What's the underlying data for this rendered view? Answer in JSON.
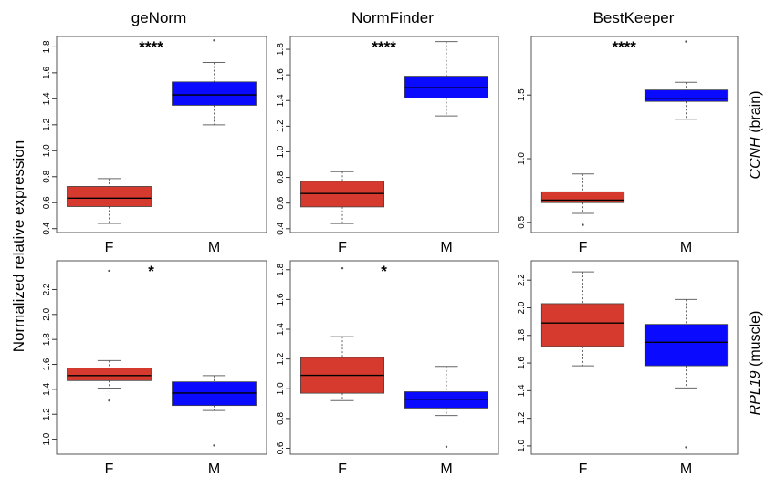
{
  "figure": {
    "ylabel": "Normalized relative expression",
    "columns": [
      "geNorm",
      "NormFinder",
      "BestKeeper"
    ],
    "rows": [
      {
        "gene": "CCNH",
        "tissue": " (brain)"
      },
      {
        "gene": "RPL19",
        "tissue": " (muscle)"
      }
    ]
  },
  "colors": {
    "F": "#d63a2f",
    "M": "#0a0aff"
  },
  "chart_data": [
    {
      "type": "box",
      "method": "geNorm",
      "gene": "CCNH",
      "tissue": "brain",
      "categories": [
        "F",
        "M"
      ],
      "ylim": [
        0.37,
        1.88
      ],
      "ticks": [
        0.4,
        0.6,
        0.8,
        1.0,
        1.2,
        1.4,
        1.6,
        1.8
      ],
      "tick_labels": [
        "0.4",
        "0.6",
        "0.8",
        "1.0",
        "1.2",
        "1.4",
        "1.6",
        "1.8"
      ],
      "boxes": [
        {
          "category": "F",
          "lower_whisker": 0.44,
          "q1": 0.57,
          "median": 0.635,
          "q3": 0.725,
          "upper_whisker": 0.785,
          "outliers": []
        },
        {
          "category": "M",
          "lower_whisker": 1.2,
          "q1": 1.35,
          "median": 1.43,
          "q3": 1.53,
          "upper_whisker": 1.68,
          "outliers": [
            1.85
          ]
        }
      ],
      "significance": "****"
    },
    {
      "type": "box",
      "method": "NormFinder",
      "gene": "CCNH",
      "tissue": "brain",
      "categories": [
        "F",
        "M"
      ],
      "ylim": [
        0.37,
        1.9
      ],
      "ticks": [
        0.4,
        0.6,
        0.8,
        1.0,
        1.2,
        1.4,
        1.6,
        1.8
      ],
      "tick_labels": [
        "0.4",
        "0.6",
        "0.8",
        "1.0",
        "1.2",
        "1.4",
        "1.6",
        "1.8"
      ],
      "boxes": [
        {
          "category": "F",
          "lower_whisker": 0.44,
          "q1": 0.57,
          "median": 0.675,
          "q3": 0.77,
          "upper_whisker": 0.845,
          "outliers": []
        },
        {
          "category": "M",
          "lower_whisker": 1.28,
          "q1": 1.42,
          "median": 1.5,
          "q3": 1.59,
          "upper_whisker": 1.86,
          "outliers": []
        }
      ],
      "significance": "****"
    },
    {
      "type": "box",
      "method": "BestKeeper",
      "gene": "CCNH",
      "tissue": "brain",
      "categories": [
        "F",
        "M"
      ],
      "ylim": [
        0.42,
        1.96
      ],
      "ticks": [
        0.5,
        1.0,
        1.5
      ],
      "tick_labels": [
        "0.5",
        "1.0",
        "1.5"
      ],
      "boxes": [
        {
          "category": "F",
          "lower_whisker": 0.57,
          "q1": 0.655,
          "median": 0.675,
          "q3": 0.74,
          "upper_whisker": 0.88,
          "outliers": [
            0.48
          ]
        },
        {
          "category": "M",
          "lower_whisker": 1.31,
          "q1": 1.45,
          "median": 1.475,
          "q3": 1.54,
          "upper_whisker": 1.6,
          "outliers": [
            1.92
          ]
        }
      ],
      "significance": "****"
    },
    {
      "type": "box",
      "method": "geNorm",
      "gene": "RPL19",
      "tissue": "muscle",
      "categories": [
        "F",
        "M"
      ],
      "ylim": [
        0.88,
        2.43
      ],
      "ticks": [
        1.0,
        1.2,
        1.4,
        1.6,
        1.8,
        2.0,
        2.2
      ],
      "tick_labels": [
        "1.0",
        "1.2",
        "1.4",
        "1.6",
        "1.8",
        "2.0",
        "2.2"
      ],
      "boxes": [
        {
          "category": "F",
          "lower_whisker": 1.41,
          "q1": 1.47,
          "median": 1.51,
          "q3": 1.57,
          "upper_whisker": 1.63,
          "outliers": [
            1.31,
            2.35
          ]
        },
        {
          "category": "M",
          "lower_whisker": 1.23,
          "q1": 1.27,
          "median": 1.37,
          "q3": 1.46,
          "upper_whisker": 1.51,
          "outliers": [
            0.95
          ]
        }
      ],
      "significance": "*"
    },
    {
      "type": "box",
      "method": "NormFinder",
      "gene": "RPL19",
      "tissue": "muscle",
      "categories": [
        "F",
        "M"
      ],
      "ylim": [
        0.56,
        1.86
      ],
      "ticks": [
        0.6,
        0.8,
        1.0,
        1.2,
        1.4,
        1.6,
        1.8
      ],
      "tick_labels": [
        "0.6",
        "0.8",
        "1.0",
        "1.2",
        "1.4",
        "1.6",
        "1.8"
      ],
      "boxes": [
        {
          "category": "F",
          "lower_whisker": 0.92,
          "q1": 0.97,
          "median": 1.09,
          "q3": 1.21,
          "upper_whisker": 1.35,
          "outliers": [
            1.81
          ]
        },
        {
          "category": "M",
          "lower_whisker": 0.82,
          "q1": 0.87,
          "median": 0.93,
          "q3": 0.98,
          "upper_whisker": 1.15,
          "outliers": [
            0.61
          ]
        }
      ],
      "significance": "*"
    },
    {
      "type": "box",
      "method": "BestKeeper",
      "gene": "RPL19",
      "tissue": "muscle",
      "categories": [
        "F",
        "M"
      ],
      "ylim": [
        0.94,
        2.34
      ],
      "ticks": [
        1.0,
        1.2,
        1.4,
        1.6,
        1.8,
        2.0,
        2.2
      ],
      "tick_labels": [
        "1.0",
        "1.2",
        "1.4",
        "1.6",
        "1.8",
        "2.0",
        "2.2"
      ],
      "boxes": [
        {
          "category": "F",
          "lower_whisker": 1.58,
          "q1": 1.72,
          "median": 1.89,
          "q3": 2.03,
          "upper_whisker": 2.26,
          "outliers": []
        },
        {
          "category": "M",
          "lower_whisker": 1.42,
          "q1": 1.58,
          "median": 1.75,
          "q3": 1.88,
          "upper_whisker": 2.06,
          "outliers": [
            0.99
          ]
        }
      ],
      "significance": ""
    }
  ]
}
